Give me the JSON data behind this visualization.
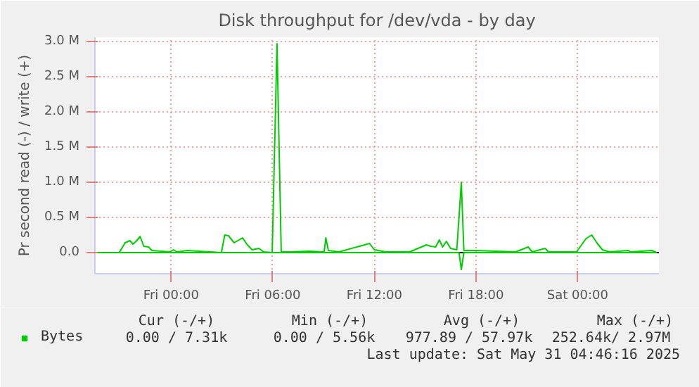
{
  "chart_data": {
    "type": "line",
    "title": "Disk throughput for /dev/vda - by day",
    "ylabel": "Pr second read (-) / write (+)",
    "xlim": [
      "2025-05-29T19:30",
      "2025-05-31T04:48"
    ],
    "ylim": [
      -0.3,
      3.06
    ],
    "xticks": [
      {
        "value": "2025-05-30T00:00",
        "label": "Fri 00:00"
      },
      {
        "value": "2025-05-30T06:00",
        "label": "Fri 06:00"
      },
      {
        "value": "2025-05-30T12:00",
        "label": "Fri 12:00"
      },
      {
        "value": "2025-05-30T18:00",
        "label": "Fri 18:00"
      },
      {
        "value": "2025-05-31T00:00",
        "label": "Sat 00:00"
      }
    ],
    "yticks": [
      {
        "value": 0,
        "label": "0.0"
      },
      {
        "value": 0.5,
        "label": "0.5 M"
      },
      {
        "value": 1,
        "label": "1.0 M"
      },
      {
        "value": 1.5,
        "label": "1.5 M"
      },
      {
        "value": 2,
        "label": "2.0 M"
      },
      {
        "value": 2.5,
        "label": "2.5 M"
      },
      {
        "value": 3,
        "label": "3.0 M"
      }
    ],
    "grid": true,
    "legend": "bottom left",
    "series": [
      {
        "name": "Bytes",
        "color": "#00cc00",
        "x": [
          "2025-05-29T19:30",
          "2025-05-29T20:56",
          "2025-05-29T21:17",
          "2025-05-29T21:34",
          "2025-05-29T21:45",
          "2025-05-29T21:58",
          "2025-05-29T22:10",
          "2025-05-29T22:23",
          "2025-05-29T22:40",
          "2025-05-29T22:52",
          "2025-05-29T23:55",
          "2025-05-30T00:08",
          "2025-05-30T00:20",
          "2025-05-30T00:56",
          "2025-05-30T02:58",
          "2025-05-30T03:10",
          "2025-05-30T03:23",
          "2025-05-30T03:43",
          "2025-05-30T04:13",
          "2025-05-30T04:30",
          "2025-05-30T04:47",
          "2025-05-30T05:11",
          "2025-05-30T05:28",
          "2025-05-30T05:58",
          "2025-05-30T06:15",
          "2025-05-30T06:30",
          "2025-05-30T07:04",
          "2025-05-30T08:07",
          "2025-05-30T09:02",
          "2025-05-30T09:08",
          "2025-05-30T09:17",
          "2025-05-30T09:55",
          "2025-05-30T11:43",
          "2025-05-30T12:00",
          "2025-05-30T12:41",
          "2025-05-30T14:05",
          "2025-05-30T15:04",
          "2025-05-30T15:20",
          "2025-05-30T15:37",
          "2025-05-30T15:50",
          "2025-05-30T16:02",
          "2025-05-30T16:15",
          "2025-05-30T16:30",
          "2025-05-30T16:52",
          "2025-05-30T17:08",
          "2025-05-30T17:17",
          "2025-05-30T17:58",
          "2025-05-30T20:20",
          "2025-05-30T21:05",
          "2025-05-30T21:19",
          "2025-05-30T22:05",
          "2025-05-30T22:17",
          "2025-05-30T23:56",
          "2025-05-31T00:30",
          "2025-05-31T00:50",
          "2025-05-31T01:08",
          "2025-05-31T01:28",
          "2025-05-31T01:53",
          "2025-05-31T03:00",
          "2025-05-31T03:08",
          "2025-05-31T04:23",
          "2025-05-31T04:40"
        ],
        "values": [
          0,
          0,
          0.14,
          0.17,
          0.12,
          0.17,
          0.23,
          0.09,
          0.08,
          0.03,
          0.01,
          0.04,
          0.01,
          0.03,
          0,
          0.25,
          0.24,
          0.14,
          0.21,
          0.11,
          0.04,
          0.06,
          0.01,
          0,
          2.97,
          0.01,
          0.01,
          0.02,
          0.01,
          0.21,
          0.03,
          0.01,
          0.13,
          0.04,
          0.01,
          0.01,
          0.11,
          0.09,
          0.08,
          0.18,
          0.08,
          0.16,
          0.06,
          0.04,
          1.0,
          0.03,
          0.03,
          0.01,
          0.08,
          0.01,
          0.06,
          0.01,
          0.01,
          0.2,
          0.25,
          0.14,
          0.04,
          0.01,
          0.03,
          0.01,
          0.03,
          0
        ]
      },
      {
        "color": "#00cc00",
        "x": [
          "2025-05-29T19:30",
          "2025-05-30T17:00",
          "2025-05-30T17:08",
          "2025-05-30T17:17",
          "2025-05-31T04:40"
        ],
        "values": [
          0,
          0,
          -0.24,
          0,
          0
        ]
      }
    ],
    "annotations": [
      "Cur (-/+)",
      "Min (-/+)",
      "Avg (-/+)",
      "Max (-/+)",
      "0.00 /  7.31k",
      "0.00 /  5.56k",
      "977.89 / 57.97k",
      "252.64k/  2.97M",
      "Last update: Sat May 31 04:46:16 2025"
    ]
  }
}
